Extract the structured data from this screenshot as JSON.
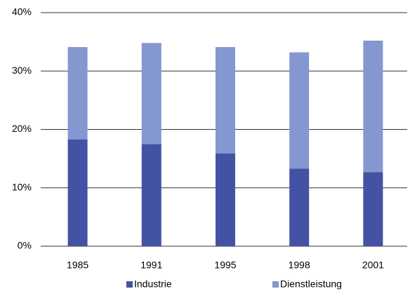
{
  "chart_data": {
    "type": "stacked-bar",
    "categories": [
      "1985",
      "1991",
      "1995",
      "1998",
      "2001"
    ],
    "series": [
      {
        "name": "Industrie",
        "color": "#4352a3",
        "values": [
          18.3,
          17.5,
          15.9,
          13.3,
          12.7
        ]
      },
      {
        "name": "Dienstleistung",
        "color": "#8497d0",
        "values": [
          15.8,
          17.3,
          18.2,
          19.9,
          22.5
        ]
      }
    ],
    "ylim": [
      0,
      40
    ],
    "yticks": [
      {
        "value": 0,
        "label": "0%"
      },
      {
        "value": 10,
        "label": "10%"
      },
      {
        "value": 20,
        "label": "20%"
      },
      {
        "value": 30,
        "label": "30%"
      },
      {
        "value": 40,
        "label": "40%"
      }
    ],
    "grid": true,
    "legend": "bottom"
  }
}
